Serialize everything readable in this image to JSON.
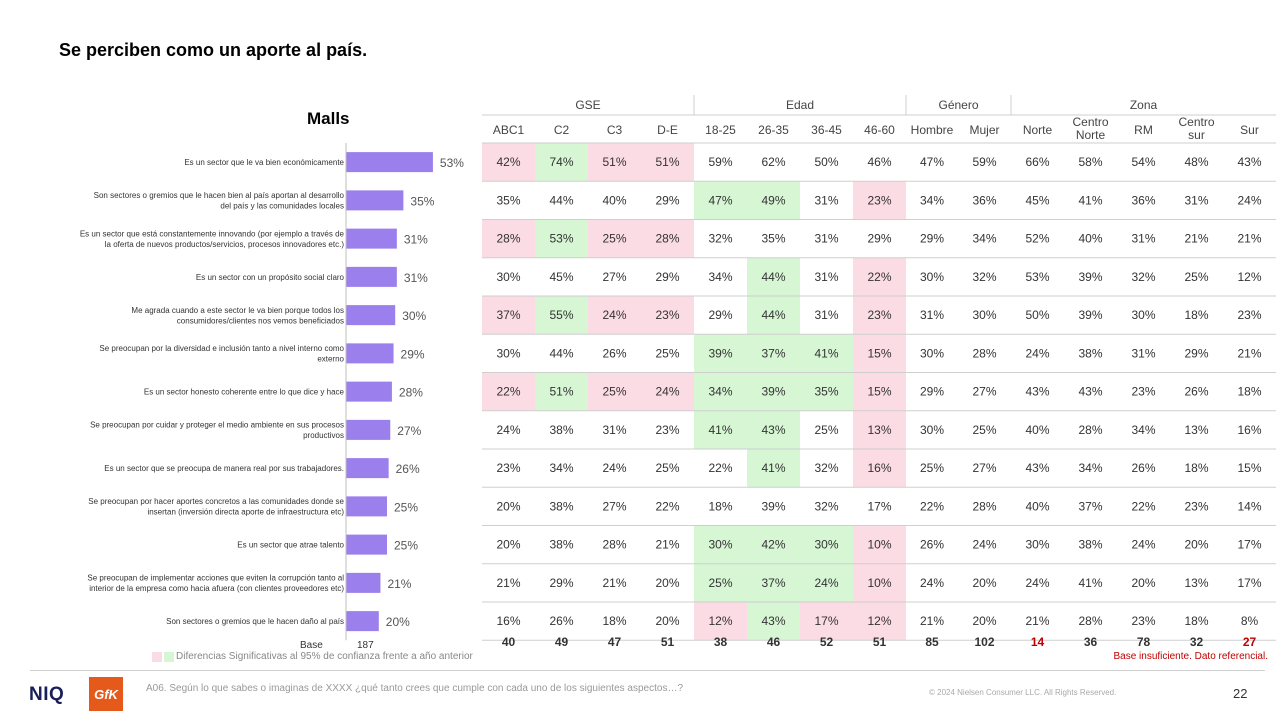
{
  "page_title": "Se perciben como un aporte al país.",
  "chart_data": {
    "type": "bar",
    "title": "Malls",
    "orientation": "horizontal",
    "categories": [
      "Es un sector que le va bien económicamente",
      "Son sectores o gremios que le hacen bien al país aportan al desarrollo del país y las comunidades locales",
      "Es un sector que está constantemente innovando (por ejemplo a través de la oferta de nuevos productos/servicios, procesos innovadores etc.)",
      "Es un sector con un propósito social claro",
      "Me agrada cuando a este sector le va bien porque todos los consumidores/clientes nos vemos beneficiados",
      "Se preocupan por la diversidad e inclusión tanto a nivel interno como externo",
      "Es un sector honesto coherente entre lo que dice y hace",
      "Se preocupan por cuidar y proteger el medio ambiente en sus procesos productivos",
      "Es un sector que se preocupa de manera real por sus trabajadores.",
      "Se preocupan por hacer aportes concretos a las comunidades donde se insertan (inversión directa aporte de infraestructura etc)",
      "Es un sector que atrae talento",
      "Se preocupan de implementar acciones que eviten la corrupción tanto al interior de la empresa como hacia afuera (con clientes proveedores etc)",
      "Son sectores o gremios que le hacen daño al país"
    ],
    "values": [
      53,
      35,
      31,
      31,
      30,
      29,
      28,
      27,
      26,
      25,
      25,
      21,
      20
    ],
    "value_labels": [
      "53%",
      "35%",
      "31%",
      "31%",
      "30%",
      "29%",
      "28%",
      "27%",
      "26%",
      "25%",
      "25%",
      "21%",
      "20%"
    ],
    "bar_color": "#9b7fec",
    "base_label": "Base",
    "base_value": "187",
    "table": {
      "groups": [
        {
          "name": "GSE",
          "columns": [
            "ABC1",
            "C2",
            "C3",
            "D-E"
          ]
        },
        {
          "name": "Edad",
          "columns": [
            "18-25",
            "26-35",
            "36-45",
            "46-60"
          ]
        },
        {
          "name": "Género",
          "columns": [
            "Hombre",
            "Mujer"
          ]
        },
        {
          "name": "Zona",
          "columns": [
            "Norte",
            "Centro Norte",
            "RM",
            "Centro sur",
            "Sur"
          ]
        }
      ],
      "rows": [
        [
          "42%",
          "74%",
          "51%",
          "51%",
          "59%",
          "62%",
          "50%",
          "46%",
          "47%",
          "59%",
          "66%",
          "58%",
          "54%",
          "48%",
          "43%"
        ],
        [
          "35%",
          "44%",
          "40%",
          "29%",
          "47%",
          "49%",
          "31%",
          "23%",
          "34%",
          "36%",
          "45%",
          "41%",
          "36%",
          "31%",
          "24%"
        ],
        [
          "28%",
          "53%",
          "25%",
          "28%",
          "32%",
          "35%",
          "31%",
          "29%",
          "29%",
          "34%",
          "52%",
          "40%",
          "31%",
          "21%",
          "21%"
        ],
        [
          "30%",
          "45%",
          "27%",
          "29%",
          "34%",
          "44%",
          "31%",
          "22%",
          "30%",
          "32%",
          "53%",
          "39%",
          "32%",
          "25%",
          "12%"
        ],
        [
          "37%",
          "55%",
          "24%",
          "23%",
          "29%",
          "44%",
          "31%",
          "23%",
          "31%",
          "30%",
          "50%",
          "39%",
          "30%",
          "18%",
          "23%"
        ],
        [
          "30%",
          "44%",
          "26%",
          "25%",
          "39%",
          "37%",
          "41%",
          "15%",
          "30%",
          "28%",
          "24%",
          "38%",
          "31%",
          "29%",
          "21%"
        ],
        [
          "22%",
          "51%",
          "25%",
          "24%",
          "34%",
          "39%",
          "35%",
          "15%",
          "29%",
          "27%",
          "43%",
          "43%",
          "23%",
          "26%",
          "18%"
        ],
        [
          "24%",
          "38%",
          "31%",
          "23%",
          "41%",
          "43%",
          "25%",
          "13%",
          "30%",
          "25%",
          "40%",
          "28%",
          "34%",
          "13%",
          "16%"
        ],
        [
          "23%",
          "34%",
          "24%",
          "25%",
          "22%",
          "41%",
          "32%",
          "16%",
          "25%",
          "27%",
          "43%",
          "34%",
          "26%",
          "18%",
          "15%"
        ],
        [
          "20%",
          "38%",
          "27%",
          "22%",
          "18%",
          "39%",
          "32%",
          "17%",
          "22%",
          "28%",
          "40%",
          "37%",
          "22%",
          "23%",
          "14%"
        ],
        [
          "20%",
          "38%",
          "28%",
          "21%",
          "30%",
          "42%",
          "30%",
          "10%",
          "26%",
          "24%",
          "30%",
          "38%",
          "24%",
          "20%",
          "17%"
        ],
        [
          "21%",
          "29%",
          "21%",
          "20%",
          "25%",
          "37%",
          "24%",
          "10%",
          "24%",
          "20%",
          "24%",
          "41%",
          "20%",
          "13%",
          "17%"
        ],
        [
          "16%",
          "26%",
          "18%",
          "20%",
          "12%",
          "43%",
          "17%",
          "12%",
          "21%",
          "20%",
          "21%",
          "28%",
          "23%",
          "18%",
          "8%"
        ]
      ],
      "highlights": [
        [
          "r",
          "g",
          "r",
          "r",
          "",
          "",
          "",
          "",
          "",
          "",
          "",
          "",
          "",
          "",
          ""
        ],
        [
          "",
          "",
          "",
          "",
          "g",
          "g",
          "",
          "r",
          "",
          "",
          "",
          "",
          "",
          "",
          ""
        ],
        [
          "r",
          "g",
          "r",
          "r",
          "",
          "",
          "",
          "",
          "",
          "",
          "",
          "",
          "",
          "",
          ""
        ],
        [
          "",
          "",
          "",
          "",
          "",
          "g",
          "",
          "r",
          "",
          "",
          "",
          "",
          "",
          "",
          ""
        ],
        [
          "r",
          "g",
          "r",
          "r",
          "",
          "g",
          "",
          "r",
          "",
          "",
          "",
          "",
          "",
          "",
          ""
        ],
        [
          "",
          "",
          "",
          "",
          "g",
          "g",
          "g",
          "r",
          "",
          "",
          "",
          "",
          "",
          "",
          ""
        ],
        [
          "r",
          "g",
          "r",
          "r",
          "g",
          "g",
          "g",
          "r",
          "",
          "",
          "",
          "",
          "",
          "",
          ""
        ],
        [
          "",
          "",
          "",
          "",
          "g",
          "g",
          "",
          "r",
          "",
          "",
          "",
          "",
          "",
          "",
          ""
        ],
        [
          "",
          "",
          "",
          "",
          "",
          "g",
          "",
          "r",
          "",
          "",
          "",
          "",
          "",
          "",
          ""
        ],
        [
          "",
          "",
          "",
          "",
          "",
          "",
          "",
          "",
          "",
          "",
          "",
          "",
          "",
          "",
          ""
        ],
        [
          "",
          "",
          "",
          "",
          "g",
          "g",
          "g",
          "r",
          "",
          "",
          "",
          "",
          "",
          "",
          ""
        ],
        [
          "",
          "",
          "",
          "",
          "g",
          "g",
          "g",
          "r",
          "",
          "",
          "",
          "",
          "",
          "",
          ""
        ],
        [
          "",
          "",
          "",
          "",
          "r",
          "g",
          "r",
          "r",
          "",
          "",
          "",
          "",
          "",
          "",
          ""
        ]
      ],
      "bases": [
        "40",
        "49",
        "47",
        "51",
        "38",
        "46",
        "52",
        "51",
        "85",
        "102",
        "14",
        "36",
        "78",
        "32",
        "27"
      ],
      "base_insufficient": [
        false,
        false,
        false,
        false,
        false,
        false,
        false,
        false,
        false,
        false,
        true,
        false,
        false,
        false,
        true
      ],
      "highlight_colors": {
        "r": "#fbdbe4",
        "g": "#d6f6d4"
      }
    }
  },
  "legend": {
    "text": "Diferencias Significativas al 95% de confianza frente a año anterior",
    "colors": [
      "#fbdbe4",
      "#d6f6d4"
    ]
  },
  "note": "Base insuficiente. Dato referencial.",
  "footnote": "A06. Según lo que sabes o imaginas de XXXX ¿qué tanto crees que cumple con cada uno de los siguientes aspectos…?",
  "copyright": "© 2024 Nielsen Consumer LLC. All Rights Reserved.",
  "page_number": "22",
  "logos": {
    "niq": "NIQ",
    "gfk": "GfK"
  }
}
